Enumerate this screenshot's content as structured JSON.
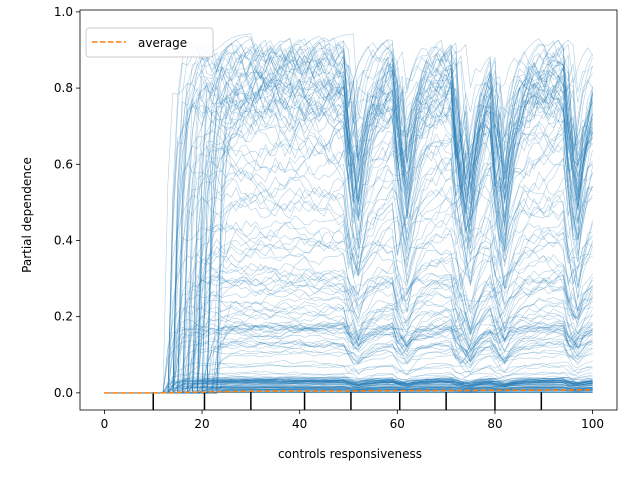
{
  "chart_data": {
    "type": "line",
    "title": "",
    "xlabel": "controls responsiveness",
    "ylabel": "Partial dependence",
    "xlim": [
      -5,
      105
    ],
    "ylim": [
      -0.045,
      1.005
    ],
    "xticks": [
      0,
      20,
      40,
      60,
      80,
      100
    ],
    "yticks": [
      0.0,
      0.2,
      0.4,
      0.6,
      0.8,
      1.0
    ],
    "xtick_labels": [
      "0",
      "20",
      "40",
      "60",
      "80",
      "100"
    ],
    "ytick_labels": [
      "0.0",
      "0.2",
      "0.4",
      "0.6",
      "0.8",
      "1.0"
    ],
    "grid": false,
    "legend": {
      "position": "upper-left",
      "entries": [
        {
          "label": "average",
          "color": "#ff7f0e",
          "style": "dashed"
        }
      ]
    },
    "individual_curves": {
      "color": "#1f77b4",
      "count": 200,
      "description_x_rise_start": 12,
      "jumps_up": [
        [
          17,
          20
        ],
        [
          22,
          24
        ],
        [
          30,
          32
        ]
      ],
      "dips": [
        [
          50,
          52
        ],
        [
          60,
          62
        ],
        [
          72,
          75
        ],
        [
          80,
          82
        ],
        [
          95,
          97
        ]
      ]
    },
    "series": [
      {
        "name": "average",
        "color": "#ff7f0e",
        "style": "dashed",
        "x": [
          0,
          10,
          20,
          30,
          40,
          50,
          60,
          70,
          80,
          90,
          100
        ],
        "values": [
          0.0,
          0.0,
          0.002,
          0.004,
          0.005,
          0.005,
          0.006,
          0.006,
          0.007,
          0.007,
          0.008
        ]
      }
    ],
    "rug_x": [
      10,
      20.5,
      30,
      41,
      50.5,
      60.5,
      70,
      80,
      89.5
    ]
  }
}
